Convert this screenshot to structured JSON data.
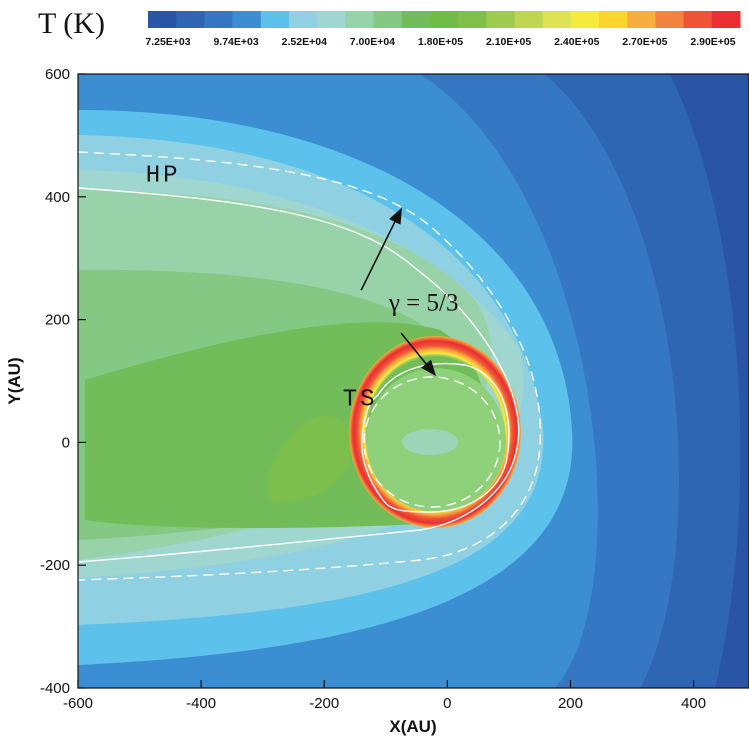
{
  "chart_data": {
    "type": "heatmap",
    "title": "T (K)",
    "xlabel": "X(AU)",
    "ylabel": "Y(AU)",
    "xlim": [
      -600,
      490
    ],
    "ylim": [
      -400,
      600
    ],
    "x_ticks": [
      -600,
      -400,
      -200,
      0,
      200,
      400
    ],
    "y_ticks": [
      -400,
      -200,
      0,
      200,
      400,
      600
    ],
    "colorbar": {
      "colors": [
        "#2a55a6",
        "#2f66b4",
        "#3577c2",
        "#3c8ed2",
        "#5cc2ec",
        "#8fd1e2",
        "#9fd6d0",
        "#98d2a8",
        "#85c884",
        "#72bd59",
        "#72bd48",
        "#7ec04a",
        "#9ccb4d",
        "#bfd651",
        "#dfe353",
        "#f6ea3f",
        "#fdd52e",
        "#f8ae3e",
        "#f3833e",
        "#ef5437",
        "#ea2e33"
      ],
      "tick_labels": [
        "7.25E+03",
        "9.74E+03",
        "2.52E+04",
        "7.00E+04",
        "1.80E+05",
        "2.10E+05",
        "2.40E+05",
        "2.70E+05",
        "2.90E+05"
      ]
    },
    "annotations": [
      {
        "text": "HP",
        "x": -490,
        "y": 425
      },
      {
        "text": "TS",
        "x": -170,
        "y": 60
      },
      {
        "text": "γ = 5/3",
        "x": -95,
        "y": 215
      }
    ],
    "arrows": [
      {
        "from": [
          -140,
          248
        ],
        "to": [
          -75,
          380
        ]
      },
      {
        "from": [
          -75,
          178
        ],
        "to": [
          -20,
          110
        ]
      }
    ],
    "boundaries": {
      "HP_solid_white": {
        "nose_x": 110,
        "upper_y_at_minus600": 412,
        "lower_y_at_minus600": -193
      },
      "HP_dashed_white": {
        "nose_x": 148,
        "upper_y_at_minus600": 472,
        "lower_y_at_minus600": -222
      },
      "TS_solid_white": {
        "center": [
          -5,
          10
        ],
        "radius_approx": 115
      },
      "TS_dashed_white": {
        "center": [
          -5,
          0
        ],
        "radius_approx": 103
      }
    }
  }
}
